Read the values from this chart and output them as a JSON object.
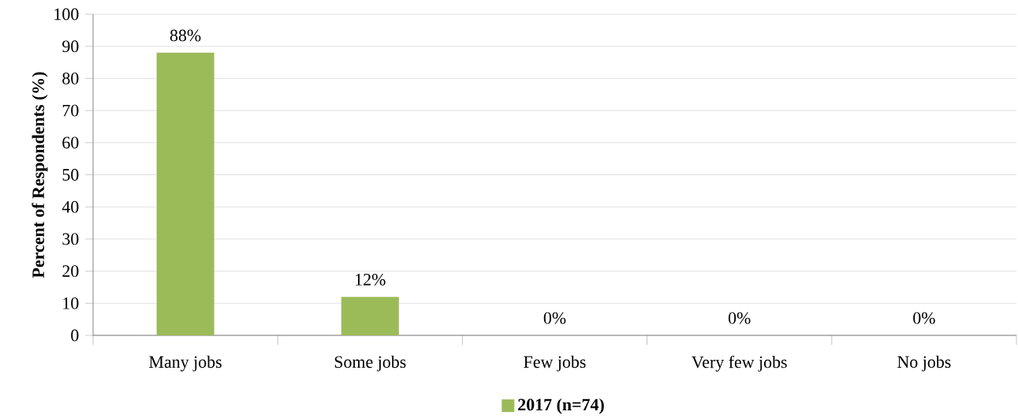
{
  "chart_data": {
    "type": "bar",
    "categories": [
      "Many jobs",
      "Some jobs",
      "Few jobs",
      "Very few jobs",
      "No jobs"
    ],
    "series": [
      {
        "name": "2017 (n=74)",
        "color": "#9bbb59",
        "values": [
          88,
          12,
          0,
          0,
          0
        ],
        "value_labels": [
          "88%",
          "12%",
          "0%",
          "0%",
          "0%"
        ]
      }
    ],
    "ylabel": "Percent of Respondents (%)",
    "ylim": [
      0,
      100
    ],
    "yticks": [
      0,
      10,
      20,
      30,
      40,
      50,
      60,
      70,
      80,
      90,
      100
    ],
    "grid": "y",
    "legend": "bottom"
  }
}
